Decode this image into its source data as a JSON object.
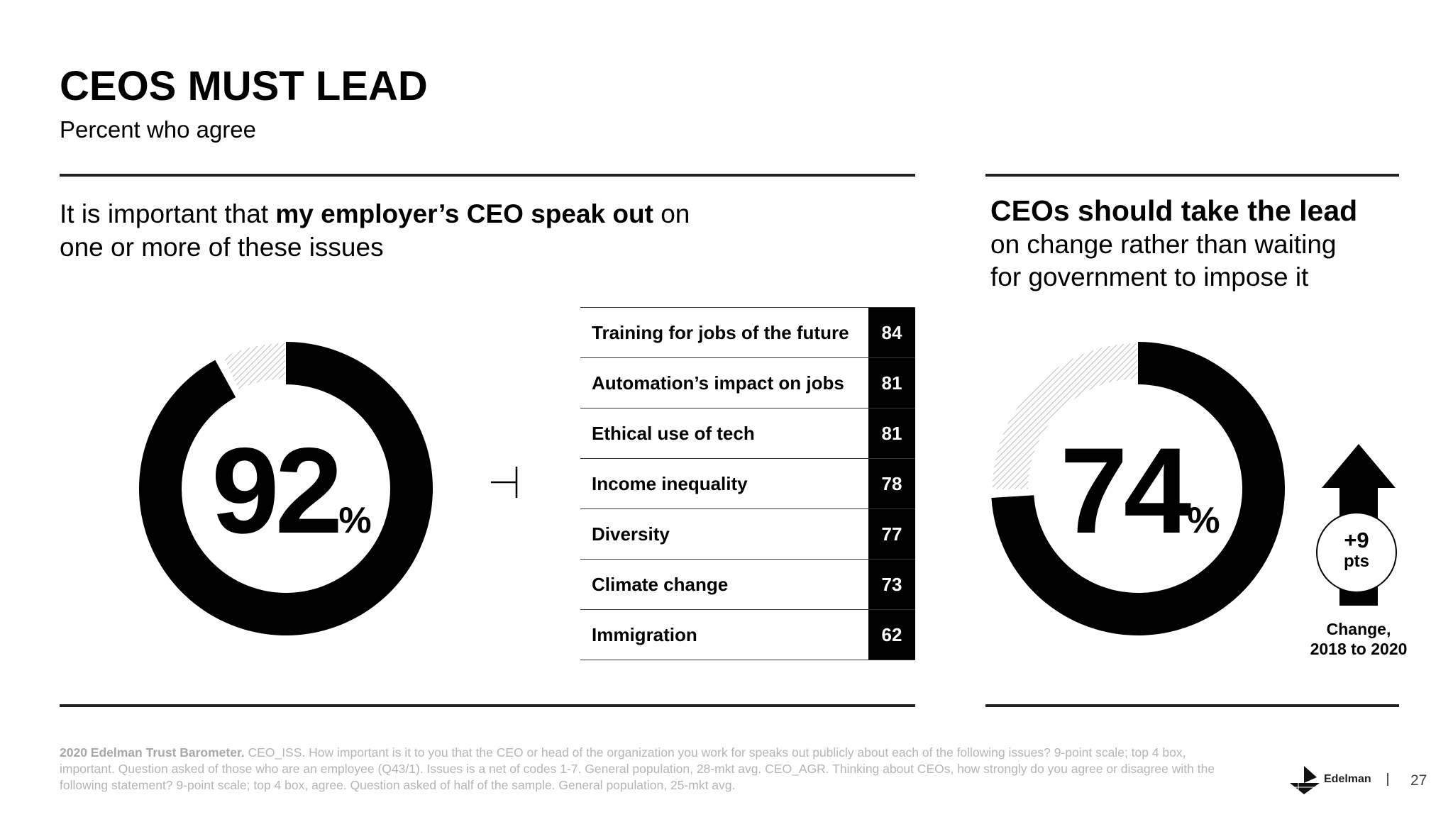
{
  "header": {
    "title": "CEOS MUST LEAD",
    "subtitle": "Percent who agree"
  },
  "left": {
    "heading_pre": "It is important that ",
    "heading_bold": "my employer’s CEO speak out",
    "heading_post": " on",
    "heading_line2": "one or more of these issues"
  },
  "right": {
    "heading_bold": "CEOs should take the lead",
    "heading_line2": "on change rather than waiting",
    "heading_line3": "for government to impose it",
    "change_value": "+9",
    "change_unit": "pts",
    "change_label_1": "Change,",
    "change_label_2": "2018 to 2020"
  },
  "chart_data": [
    {
      "type": "pie",
      "title": "It is important that my employer’s CEO speak out on one or more of these issues",
      "value": 92,
      "display": "92",
      "unit": "%",
      "colors": {
        "agree": "#000000",
        "rest": "#cfcfcf"
      }
    },
    {
      "type": "table",
      "categories": [
        "Training for jobs of the future",
        "Automation’s impact on jobs",
        "Ethical use of tech",
        "Income inequality",
        "Diversity",
        "Climate change",
        "Immigration"
      ],
      "values": [
        84,
        81,
        81,
        78,
        77,
        73,
        62
      ]
    },
    {
      "type": "pie",
      "title": "CEOs should take the lead on change rather than waiting for government to impose it",
      "value": 74,
      "display": "74",
      "unit": "%",
      "change": 9
    }
  ],
  "footer": {
    "source_bold": "2020 Edelman Trust Barometer.",
    "source_text": " CEO_ISS. How important is it to you that the CEO or head of the organization you work for speaks out publicly about each of the following issues? 9-point scale; top 4 box, important. Question asked of those who are an employee (Q43/1). Issues is a net of codes 1-7. General population, 28-mkt avg. CEO_AGR. Thinking about CEOs, how strongly do you agree or disagree with the following statement? 9-point scale; top 4 box, agree. Question asked of half of the sample. General population, 25-mkt avg.",
    "brand": "Edelman",
    "page_number": "27"
  }
}
